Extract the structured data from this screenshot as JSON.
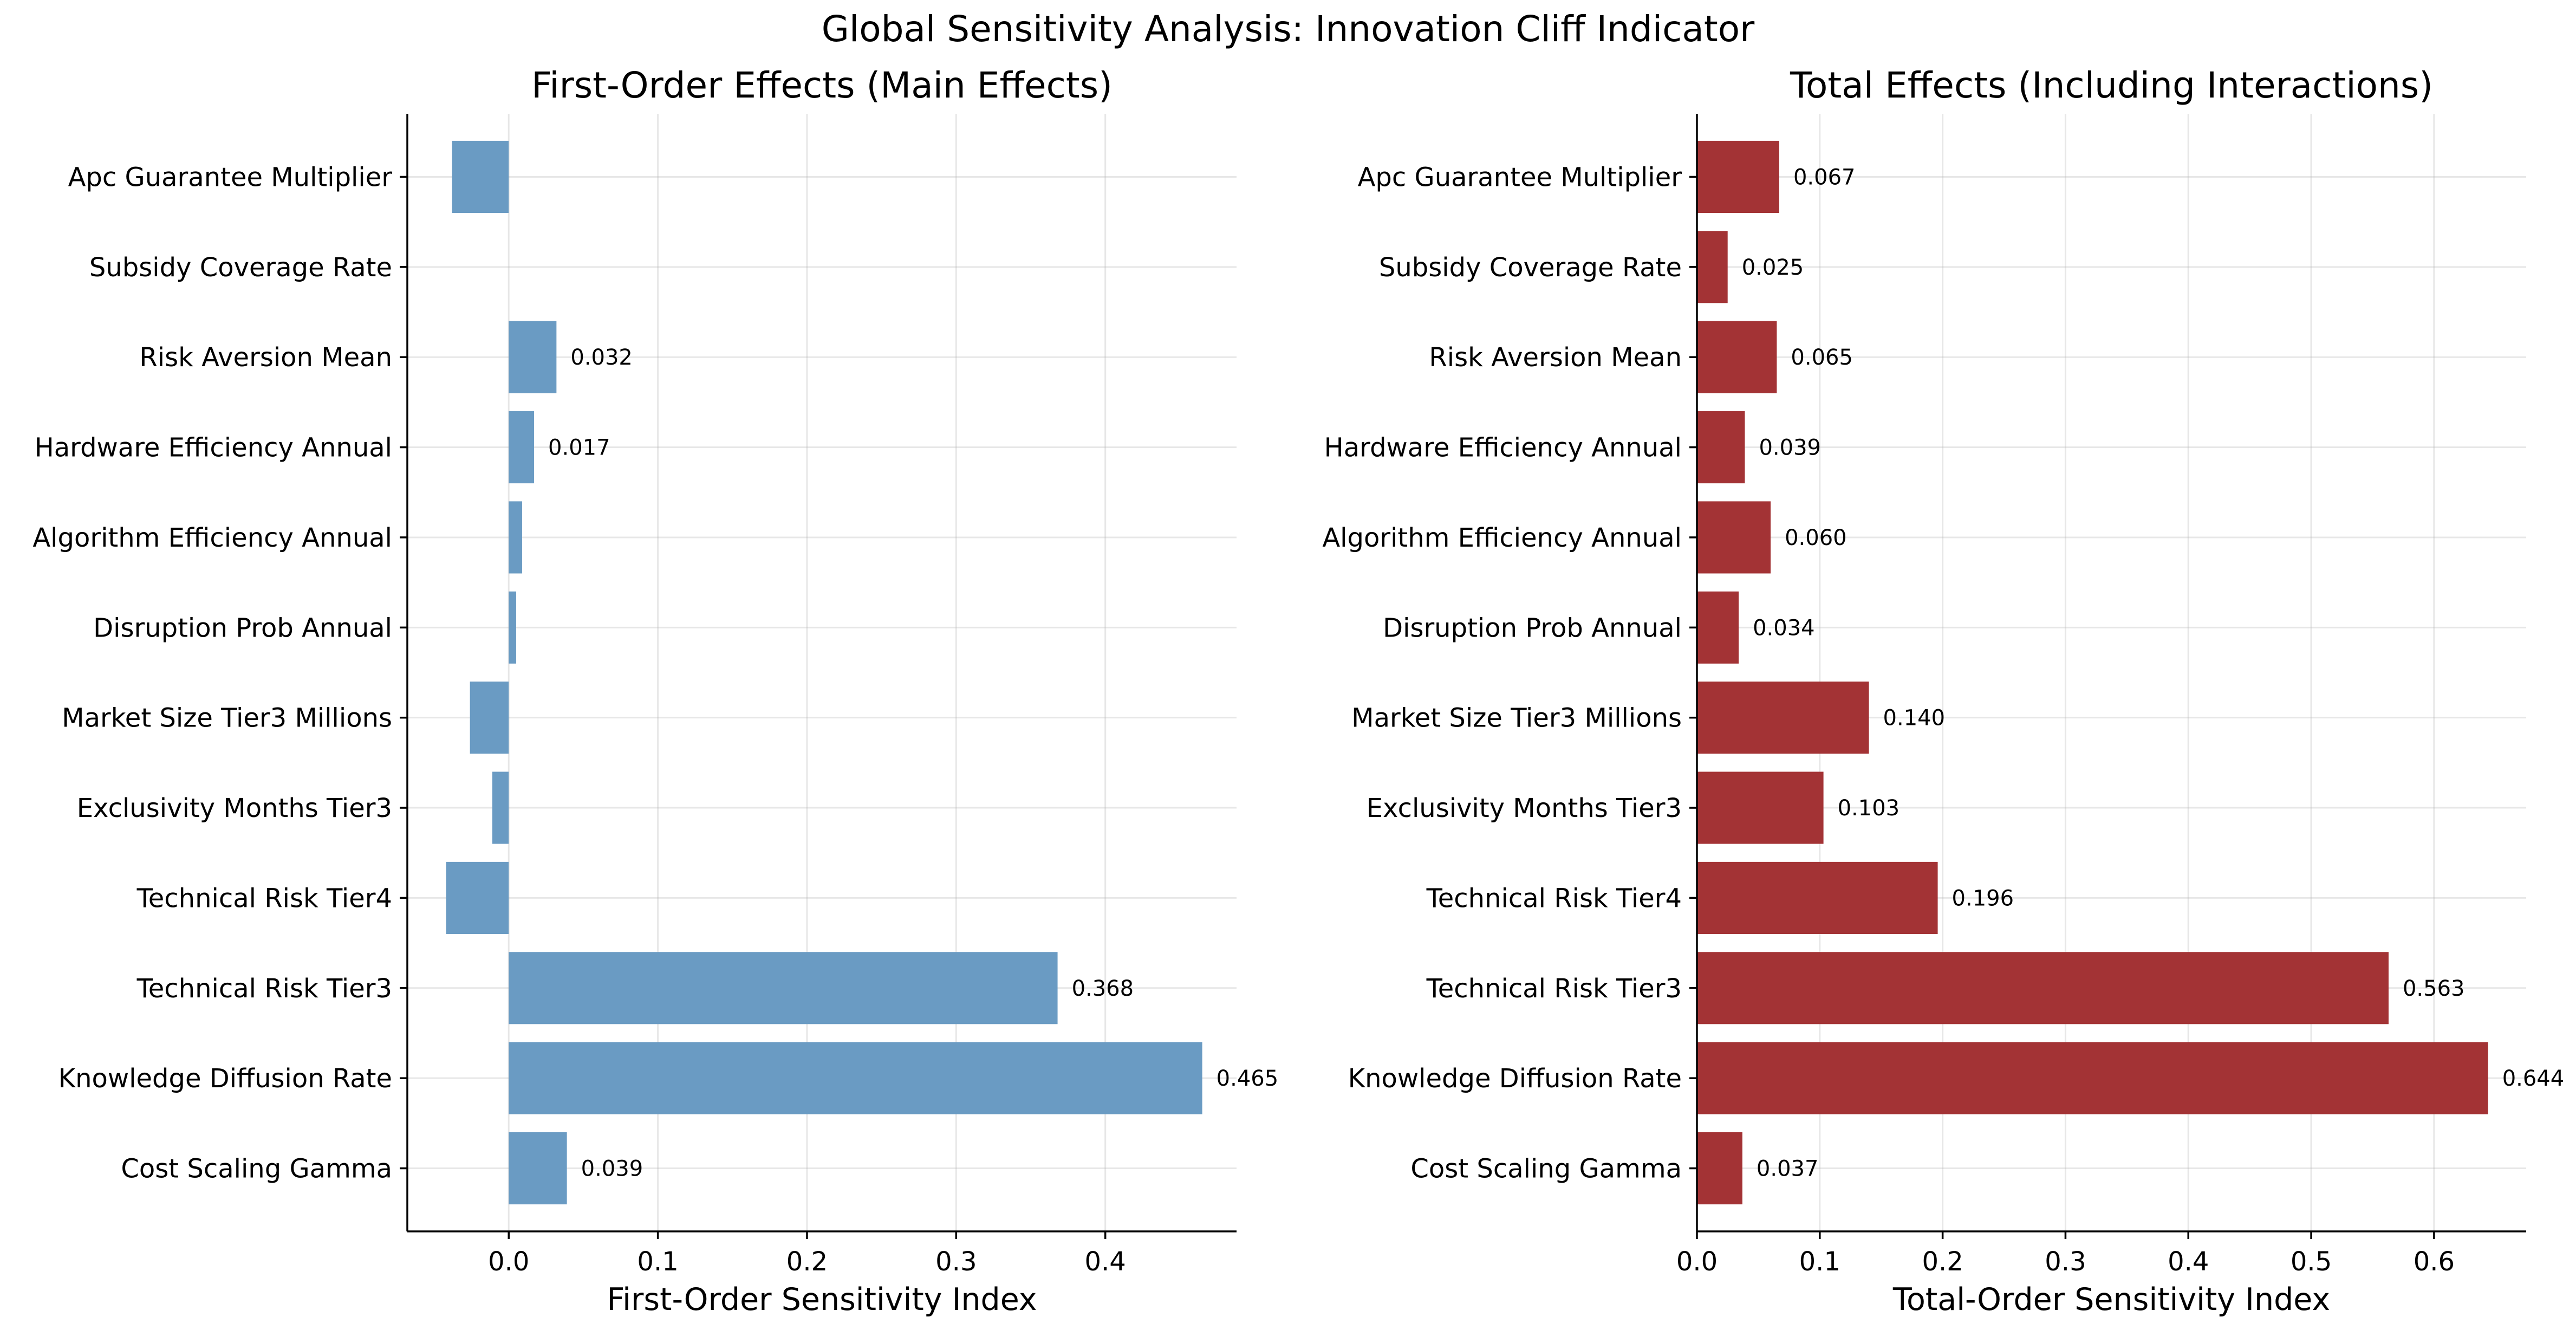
{
  "title": "Global Sensitivity Analysis: Innovation Cliff Indicator",
  "chart_data": [
    {
      "type": "bar",
      "orientation": "horizontal",
      "title": "First-Order Effects (Main Effects)",
      "xlabel": "First-Order Sensitivity Index",
      "ylabel": "",
      "xlim": [
        -0.068,
        0.488
      ],
      "xticks": [
        "0.0",
        "0.1",
        "0.2",
        "0.3",
        "0.4"
      ],
      "grid": true,
      "color": "#6a9bc3",
      "categories": [
        "Apc Guarantee Multiplier",
        "Subsidy Coverage Rate",
        "Risk Aversion Mean",
        "Hardware Efficiency Annual",
        "Algorithm Efficiency Annual",
        "Disruption Prob Annual",
        "Market Size Tier3 Millions",
        "Exclusivity Months Tier3",
        "Technical Risk Tier4",
        "Technical Risk Tier3",
        "Knowledge Diffusion Rate",
        "Cost Scaling Gamma"
      ],
      "values": [
        -0.038,
        0.0,
        0.032,
        0.017,
        0.009,
        0.005,
        -0.026,
        -0.011,
        -0.042,
        0.368,
        0.465,
        0.039
      ],
      "data_labels": [
        "",
        "",
        "0.032",
        "0.017",
        "",
        "",
        "",
        "",
        "",
        "0.368",
        "0.465",
        "0.039"
      ]
    },
    {
      "type": "bar",
      "orientation": "horizontal",
      "title": "Total Effects (Including Interactions)",
      "xlabel": "Total-Order Sensitivity Index",
      "ylabel": "",
      "xlim": [
        0,
        0.675
      ],
      "xticks": [
        "0.0",
        "0.1",
        "0.2",
        "0.3",
        "0.4",
        "0.5",
        "0.6"
      ],
      "grid": true,
      "color": "#a33335",
      "categories": [
        "Apc Guarantee Multiplier",
        "Subsidy Coverage Rate",
        "Risk Aversion Mean",
        "Hardware Efficiency Annual",
        "Algorithm Efficiency Annual",
        "Disruption Prob Annual",
        "Market Size Tier3 Millions",
        "Exclusivity Months Tier3",
        "Technical Risk Tier4",
        "Technical Risk Tier3",
        "Knowledge Diffusion Rate",
        "Cost Scaling Gamma"
      ],
      "values": [
        0.067,
        0.025,
        0.065,
        0.039,
        0.06,
        0.034,
        0.14,
        0.103,
        0.196,
        0.563,
        0.644,
        0.037
      ],
      "data_labels": [
        "0.067",
        "0.025",
        "0.065",
        "0.039",
        "0.060",
        "0.034",
        "0.140",
        "0.103",
        "0.196",
        "0.563",
        "0.644",
        "0.037"
      ]
    }
  ]
}
